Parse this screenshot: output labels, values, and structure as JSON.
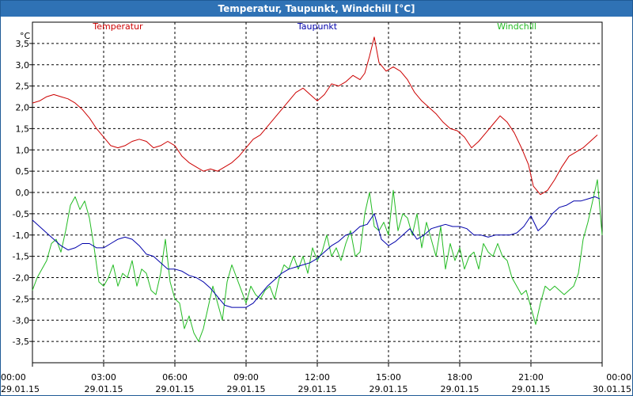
{
  "window": {
    "title": "Temperatur, Taupunkt, Windchill [°C]"
  },
  "chart_data": {
    "type": "line",
    "title": "Temperatur, Taupunkt, Windchill [°C]",
    "ylabel": "°C",
    "ylim": [
      -4.0,
      4.0
    ],
    "xlim": [
      0,
      24
    ],
    "grid": true,
    "yticks": [
      {
        "v": 3.5,
        "label": "3,5"
      },
      {
        "v": 3.0,
        "label": "3,0"
      },
      {
        "v": 2.5,
        "label": "2,5"
      },
      {
        "v": 2.0,
        "label": "2,0"
      },
      {
        "v": 1.5,
        "label": "1,5"
      },
      {
        "v": 1.0,
        "label": "1,0"
      },
      {
        "v": 0.5,
        "label": "0,5"
      },
      {
        "v": 0.0,
        "label": "0,0"
      },
      {
        "v": -0.5,
        "label": "-0,5"
      },
      {
        "v": -1.0,
        "label": "-1,0"
      },
      {
        "v": -1.5,
        "label": "-1,5"
      },
      {
        "v": -2.0,
        "label": "-2,0"
      },
      {
        "v": -2.5,
        "label": "-2,5"
      },
      {
        "v": -3.0,
        "label": "-3,0"
      },
      {
        "v": -3.5,
        "label": "-3,5"
      }
    ],
    "xticks": [
      {
        "v": 0,
        "time": "00:00",
        "date": "29.01.15"
      },
      {
        "v": 3,
        "time": "03:00",
        "date": "29.01.15"
      },
      {
        "v": 6,
        "time": "06:00",
        "date": "29.01.15"
      },
      {
        "v": 9,
        "time": "09:00",
        "date": "29.01.15"
      },
      {
        "v": 12,
        "time": "12:00",
        "date": "29.01.15"
      },
      {
        "v": 15,
        "time": "15:00",
        "date": "29.01.15"
      },
      {
        "v": 18,
        "time": "18:00",
        "date": "29.01.15"
      },
      {
        "v": 21,
        "time": "21:00",
        "date": "29.01.15"
      },
      {
        "v": 24,
        "time": "00:00",
        "date": "30.01.15"
      }
    ],
    "series": [
      {
        "name": "Temperatur",
        "color": "#cc0000",
        "x": [
          0,
          0.3,
          0.6,
          0.9,
          1.2,
          1.5,
          1.8,
          2.1,
          2.4,
          2.7,
          3.0,
          3.3,
          3.6,
          3.9,
          4.2,
          4.5,
          4.8,
          5.1,
          5.4,
          5.7,
          6.0,
          6.3,
          6.6,
          6.9,
          7.2,
          7.5,
          7.8,
          8.1,
          8.4,
          8.7,
          9.0,
          9.3,
          9.6,
          9.9,
          10.2,
          10.5,
          10.8,
          11.1,
          11.4,
          11.7,
          12.0,
          12.3,
          12.6,
          12.9,
          13.2,
          13.5,
          13.8,
          14.0,
          14.2,
          14.4,
          14.6,
          14.9,
          15.2,
          15.5,
          15.8,
          16.1,
          16.4,
          16.7,
          17.0,
          17.3,
          17.6,
          17.9,
          18.2,
          18.5,
          18.8,
          19.1,
          19.4,
          19.7,
          20.0,
          20.3,
          20.6,
          20.9,
          21.1,
          21.4,
          21.7,
          22.0,
          22.3,
          22.6,
          22.9,
          23.2,
          23.5,
          23.8
        ],
        "values": [
          2.1,
          2.15,
          2.25,
          2.3,
          2.25,
          2.2,
          2.1,
          1.95,
          1.75,
          1.5,
          1.3,
          1.1,
          1.05,
          1.1,
          1.2,
          1.25,
          1.2,
          1.05,
          1.1,
          1.2,
          1.1,
          0.85,
          0.7,
          0.6,
          0.5,
          0.55,
          0.5,
          0.6,
          0.7,
          0.85,
          1.05,
          1.25,
          1.35,
          1.55,
          1.75,
          1.95,
          2.15,
          2.35,
          2.45,
          2.3,
          2.15,
          2.3,
          2.55,
          2.5,
          2.6,
          2.75,
          2.65,
          2.8,
          3.2,
          3.65,
          3.05,
          2.85,
          2.95,
          2.85,
          2.65,
          2.35,
          2.15,
          2.0,
          1.85,
          1.65,
          1.5,
          1.45,
          1.3,
          1.05,
          1.2,
          1.4,
          1.6,
          1.8,
          1.65,
          1.4,
          1.05,
          0.65,
          0.15,
          -0.05,
          0.05,
          0.3,
          0.6,
          0.85,
          0.95,
          1.05,
          1.2,
          1.35
        ]
      },
      {
        "name": "Taupunkt",
        "color": "#0000aa",
        "x": [
          0,
          0.3,
          0.6,
          0.9,
          1.2,
          1.5,
          1.8,
          2.1,
          2.4,
          2.7,
          3.0,
          3.3,
          3.6,
          3.9,
          4.2,
          4.5,
          4.8,
          5.1,
          5.4,
          5.7,
          6.0,
          6.3,
          6.6,
          6.9,
          7.2,
          7.5,
          7.8,
          8.1,
          8.4,
          8.7,
          9.0,
          9.3,
          9.6,
          9.9,
          10.2,
          10.5,
          10.8,
          11.1,
          11.4,
          11.7,
          12.0,
          12.3,
          12.6,
          12.9,
          13.2,
          13.5,
          13.8,
          14.1,
          14.4,
          14.7,
          15.0,
          15.3,
          15.6,
          15.9,
          16.2,
          16.5,
          16.8,
          17.1,
          17.4,
          17.7,
          18.0,
          18.3,
          18.6,
          18.9,
          19.2,
          19.5,
          19.8,
          20.1,
          20.4,
          20.7,
          21.0,
          21.3,
          21.6,
          21.9,
          22.2,
          22.5,
          22.8,
          23.1,
          23.4,
          23.7,
          23.9
        ],
        "values": [
          -0.65,
          -0.8,
          -0.95,
          -1.1,
          -1.25,
          -1.35,
          -1.3,
          -1.2,
          -1.2,
          -1.3,
          -1.3,
          -1.2,
          -1.1,
          -1.05,
          -1.1,
          -1.25,
          -1.45,
          -1.5,
          -1.65,
          -1.8,
          -1.8,
          -1.85,
          -1.95,
          -2.0,
          -2.1,
          -2.25,
          -2.45,
          -2.65,
          -2.7,
          -2.7,
          -2.7,
          -2.6,
          -2.4,
          -2.2,
          -2.05,
          -1.9,
          -1.8,
          -1.75,
          -1.7,
          -1.65,
          -1.55,
          -1.4,
          -1.25,
          -1.15,
          -1.0,
          -0.95,
          -0.8,
          -0.75,
          -0.5,
          -1.1,
          -1.25,
          -1.15,
          -1.0,
          -0.85,
          -1.1,
          -1.0,
          -0.85,
          -0.8,
          -0.75,
          -0.8,
          -0.8,
          -0.85,
          -1.0,
          -1.0,
          -1.05,
          -1.0,
          -1.0,
          -1.0,
          -0.95,
          -0.8,
          -0.55,
          -0.9,
          -0.75,
          -0.5,
          -0.35,
          -0.3,
          -0.2,
          -0.2,
          -0.15,
          -0.1,
          -0.15
        ]
      },
      {
        "name": "Windchill",
        "color": "#22bb22",
        "x": [
          0,
          0.2,
          0.4,
          0.6,
          0.8,
          1.0,
          1.2,
          1.4,
          1.6,
          1.8,
          2.0,
          2.2,
          2.4,
          2.6,
          2.8,
          3.0,
          3.2,
          3.4,
          3.6,
          3.8,
          4.0,
          4.2,
          4.4,
          4.6,
          4.8,
          5.0,
          5.2,
          5.4,
          5.6,
          5.8,
          6.0,
          6.2,
          6.4,
          6.6,
          6.8,
          7.0,
          7.2,
          7.4,
          7.6,
          7.8,
          8.0,
          8.2,
          8.4,
          8.6,
          8.8,
          9.0,
          9.2,
          9.4,
          9.6,
          9.8,
          10.0,
          10.2,
          10.4,
          10.6,
          10.8,
          11.0,
          11.2,
          11.4,
          11.6,
          11.8,
          12.0,
          12.2,
          12.4,
          12.6,
          12.8,
          13.0,
          13.2,
          13.4,
          13.6,
          13.8,
          14.0,
          14.2,
          14.4,
          14.6,
          14.8,
          15.0,
          15.2,
          15.4,
          15.6,
          15.8,
          16.0,
          16.2,
          16.4,
          16.6,
          16.8,
          17.0,
          17.2,
          17.4,
          17.6,
          17.8,
          18.0,
          18.2,
          18.4,
          18.6,
          18.8,
          19.0,
          19.2,
          19.4,
          19.6,
          19.8,
          20.0,
          20.2,
          20.4,
          20.6,
          20.8,
          21.0,
          21.2,
          21.4,
          21.6,
          21.8,
          22.0,
          22.2,
          22.4,
          22.6,
          22.8,
          23.0,
          23.2,
          23.4,
          23.6,
          23.8,
          24.0
        ],
        "values": [
          -2.3,
          -2.0,
          -1.8,
          -1.6,
          -1.2,
          -1.1,
          -1.4,
          -0.9,
          -0.3,
          -0.1,
          -0.4,
          -0.2,
          -0.6,
          -1.3,
          -2.1,
          -2.2,
          -2.0,
          -1.7,
          -2.2,
          -1.9,
          -2.0,
          -1.6,
          -2.2,
          -1.8,
          -1.9,
          -2.3,
          -2.4,
          -1.9,
          -1.1,
          -2.1,
          -2.5,
          -2.6,
          -3.2,
          -2.9,
          -3.3,
          -3.5,
          -3.2,
          -2.7,
          -2.2,
          -2.6,
          -3.0,
          -2.1,
          -1.7,
          -2.0,
          -2.3,
          -2.6,
          -2.2,
          -2.4,
          -2.5,
          -2.3,
          -2.2,
          -2.5,
          -2.0,
          -1.7,
          -1.8,
          -1.5,
          -1.8,
          -1.5,
          -1.9,
          -1.3,
          -1.6,
          -1.4,
          -1.0,
          -1.5,
          -1.3,
          -1.6,
          -1.2,
          -0.9,
          -1.5,
          -1.4,
          -0.5,
          0.0,
          -0.8,
          -0.9,
          -0.7,
          -1.0,
          0.05,
          -0.9,
          -0.5,
          -0.6,
          -1.0,
          -0.5,
          -1.3,
          -0.7,
          -1.1,
          -1.5,
          -0.8,
          -1.8,
          -1.2,
          -1.6,
          -1.3,
          -1.8,
          -1.5,
          -1.4,
          -1.8,
          -1.2,
          -1.4,
          -1.5,
          -1.2,
          -1.5,
          -1.6,
          -2.0,
          -2.2,
          -2.4,
          -2.3,
          -2.7,
          -3.1,
          -2.6,
          -2.2,
          -2.3,
          -2.2,
          -2.3,
          -2.4,
          -2.3,
          -2.2,
          -1.9,
          -1.1,
          -0.7,
          -0.2,
          0.3,
          -1.0
        ]
      }
    ]
  }
}
